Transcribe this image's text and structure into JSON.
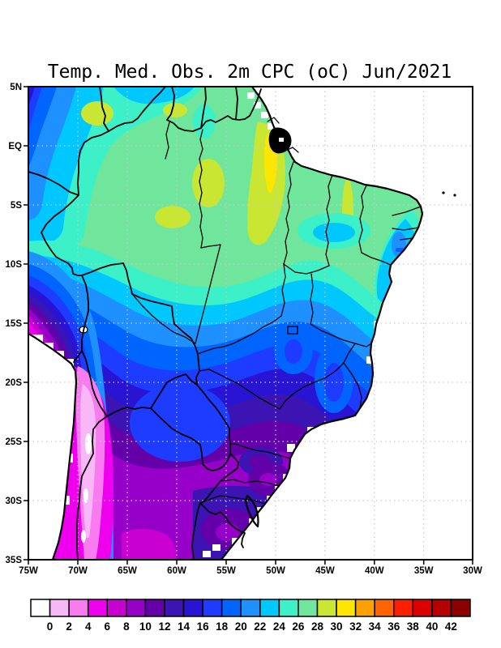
{
  "figure": {
    "title": "Temp. Med. Obs. 2m CPC (oC) Jun/2021"
  },
  "axes": {
    "lat_labels": [
      "5N",
      "EQ",
      "5S",
      "10S",
      "15S",
      "20S",
      "25S",
      "30S",
      "35S"
    ],
    "lon_labels": [
      "75W",
      "70W",
      "65W",
      "60W",
      "55W",
      "50W",
      "45W",
      "40W",
      "35W",
      "30W"
    ]
  },
  "colorbar": {
    "unit": "oC",
    "tick_values": [
      0,
      2,
      4,
      6,
      8,
      10,
      12,
      14,
      16,
      18,
      20,
      22,
      24,
      26,
      28,
      30,
      32,
      34,
      36,
      38,
      40,
      42
    ],
    "colors": [
      "#ffffff",
      "#f8b8f8",
      "#f87cf0",
      "#ee00ee",
      "#c800d2",
      "#9600c8",
      "#6400aa",
      "#3c14b4",
      "#2814d2",
      "#1e3cff",
      "#0064ff",
      "#1e90ff",
      "#00c8ff",
      "#3cf0c8",
      "#6fe69b",
      "#c8e632",
      "#ffe600",
      "#ffa000",
      "#ff6400",
      "#ff1e00",
      "#dc0000",
      "#b40000",
      "#8c0000"
    ]
  },
  "chart_data": {
    "type": "heatmap",
    "title": "Temp. Med. Obs. 2m CPC (oC) Jun/2021",
    "variable": "Mean observed 2m temperature",
    "units": "oC",
    "month": "Jun/2021",
    "source_label": "CPC",
    "xlabel_ticks": [
      "75W",
      "70W",
      "65W",
      "60W",
      "55W",
      "50W",
      "45W",
      "40W",
      "35W",
      "30W"
    ],
    "ylabel_ticks": [
      "5N",
      "EQ",
      "5S",
      "10S",
      "15S",
      "20S",
      "25S",
      "30S",
      "35S"
    ],
    "lon_range_deg_west": [
      75,
      30
    ],
    "lat_range_deg": [
      5,
      -35
    ],
    "grid": "dotted 5-degree graticule",
    "legend_position": "bottom horizontal colorbar",
    "scale_breaks_C": [
      0,
      2,
      4,
      6,
      8,
      10,
      12,
      14,
      16,
      18,
      20,
      22,
      24,
      26,
      28,
      30,
      32,
      34,
      36,
      38,
      40,
      42
    ],
    "scale_colors": [
      "#ffffff",
      "#f8b8f8",
      "#f87cf0",
      "#ee00ee",
      "#c800d2",
      "#9600c8",
      "#6400aa",
      "#3c14b4",
      "#2814d2",
      "#1e3cff",
      "#0064ff",
      "#1e90ff",
      "#00c8ff",
      "#3cf0c8",
      "#6fe69b",
      "#c8e632",
      "#ffe600",
      "#ffa000",
      "#ff6400",
      "#ff1e00",
      "#dc0000",
      "#b40000",
      "#8c0000"
    ],
    "region_values": [
      {
        "region": "Northwest Amazon (Colombia/Venezuela border, 70W 2N)",
        "approx_C": "26-28"
      },
      {
        "region": "Far northwest corner (75W 4N)",
        "approx_C": "16-24"
      },
      {
        "region": "Equatorial spots near 67W 3N and 60W 3N",
        "approx_C": "28-30"
      },
      {
        "region": "Amapa / Amazon mouth band (52-50W, 2N-4S)",
        "approx_C": "28-32"
      },
      {
        "region": "Central Amazon basin",
        "approx_C": "26-28"
      },
      {
        "region": "Northeast interior patches (44-40W, 6-9S)",
        "approx_C": "22-26"
      },
      {
        "region": "Narrow strip near 43W, 3-8S",
        "approx_C": "28-30"
      },
      {
        "region": "East coast Pernambuco-Bahia (36-38W, 8-13S)",
        "approx_C": "20-24"
      },
      {
        "region": "Central Brazil plateau (50-46W, 13-17S)",
        "approx_C": "22-26"
      },
      {
        "region": "Minas Gerais highlands (44W, 18-21S)",
        "approx_C": "16-20"
      },
      {
        "region": "Pantanal / Bolivia lowlands (60W, 17S)",
        "approx_C": "20-24"
      },
      {
        "region": "Paraguay (58W, 23S)",
        "approx_C": "16-18"
      },
      {
        "region": "Sao Paulo / Parana (50W, 23-26S)",
        "approx_C": "12-16"
      },
      {
        "region": "Rio Grande do Sul (54W, 29-32S)",
        "approx_C": "10-14"
      },
      {
        "region": "Uruguay",
        "approx_C": "8-12"
      },
      {
        "region": "Argentina pampas (62W, 33-35S)",
        "approx_C": "6-10"
      },
      {
        "region": "Peru-Bolivia Andes (70W, 13-17S)",
        "approx_C": "2-10"
      },
      {
        "region": "High Andes Chile-Argentina (69W, 23-33S)",
        "approx_C": "-2-4 (white core below 0)"
      },
      {
        "region": "Ocean",
        "approx_C": "masked (white)"
      }
    ]
  }
}
